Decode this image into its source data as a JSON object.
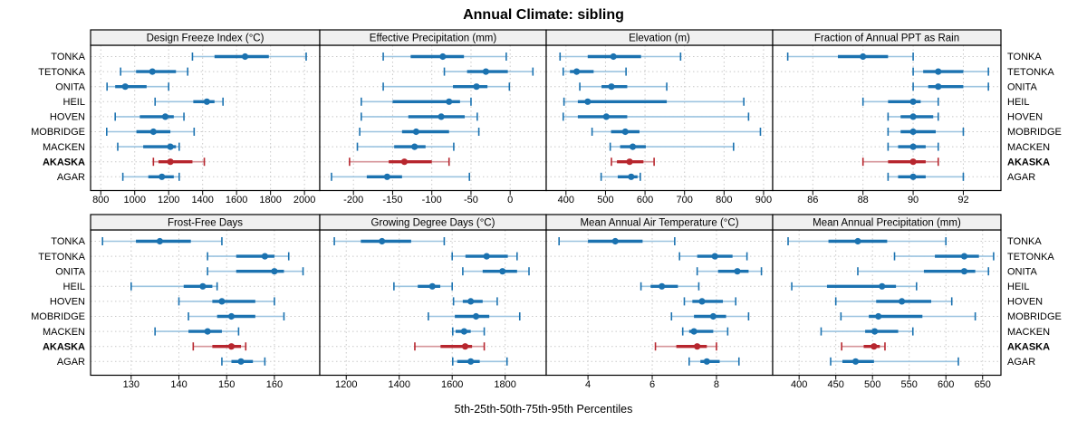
{
  "title": "Annual Climate: sibling",
  "caption": "5th-25th-50th-75th-95th Percentiles",
  "highlight_site": "AKASKA",
  "colors": {
    "blue": "#1b72b0",
    "blue_light": "#9cc4e0",
    "red": "#b7262e",
    "red_light": "#d6959a",
    "grid": "#c9c9c9",
    "strip_bg": "#f0f0f0",
    "border": "#000000",
    "panel_bg": "#ffffff"
  },
  "chart_data": {
    "type": "dotplot-intervals",
    "percentiles": [
      5,
      25,
      50,
      75,
      95
    ],
    "legend_note": "thin line = 5th-95th, thick line = 25th-75th, dot = 50th percentile",
    "layout": {
      "rows": 2,
      "cols": 4,
      "grid": "dotted",
      "row_labels_left_and_right": true
    },
    "rows": [
      "TONKA",
      "TETONKA",
      "ONITA",
      "HEIL",
      "HOVEN",
      "MOBRIDGE",
      "MACKEN",
      "AKASKA",
      "AGAR"
    ],
    "panels": [
      {
        "title": "Design Freeze Index (°C)",
        "xlim": [
          740,
          2090
        ],
        "ticks": [
          800,
          1000,
          1200,
          1400,
          1600,
          1800,
          2000
        ],
        "values": {
          "TONKA": [
            1340,
            1470,
            1650,
            1790,
            2010
          ],
          "TETONKA": [
            917,
            1008,
            1104,
            1243,
            1312
          ],
          "ONITA": [
            837,
            885,
            944,
            1070,
            1200
          ],
          "HEIL": [
            1120,
            1345,
            1425,
            1470,
            1520
          ],
          "HOVEN": [
            885,
            1030,
            1180,
            1230,
            1290
          ],
          "MOBRIDGE": [
            835,
            1010,
            1110,
            1210,
            1350
          ],
          "MACKEN": [
            900,
            1050,
            1210,
            1243,
            1262
          ],
          "AKASKA": [
            1110,
            1140,
            1210,
            1340,
            1410
          ],
          "AGAR": [
            930,
            1080,
            1160,
            1230,
            1262
          ]
        }
      },
      {
        "title": "Effective Precipitation (mm)",
        "xlim": [
          -243,
          46
        ],
        "ticks": [
          -200,
          -150,
          -100,
          -50,
          0
        ],
        "values": {
          "TONKA": [
            -162,
            -127,
            -86,
            -59,
            -5
          ],
          "TETONKA": [
            -84,
            -55,
            -31,
            -3,
            29
          ],
          "ONITA": [
            -162,
            -73,
            -43,
            -29,
            -1
          ],
          "HEIL": [
            -190,
            -150,
            -78,
            -64,
            -50
          ],
          "HOVEN": [
            -190,
            -130,
            -88,
            -58,
            -42
          ],
          "MOBRIDGE": [
            -192,
            -138,
            -120,
            -78,
            -40
          ],
          "MACKEN": [
            -195,
            -148,
            -122,
            -108,
            -72
          ],
          "AKASKA": [
            -205,
            -155,
            -135,
            -100,
            -78
          ],
          "AGAR": [
            -228,
            -183,
            -157,
            -138,
            -52
          ]
        }
      },
      {
        "title": "Elevation (m)",
        "xlim": [
          350,
          923
        ],
        "ticks": [
          400,
          500,
          600,
          700,
          800,
          900
        ],
        "values": {
          "TONKA": [
            385,
            455,
            520,
            590,
            690
          ],
          "TETONKA": [
            393,
            410,
            427,
            470,
            552
          ],
          "ONITA": [
            435,
            490,
            515,
            555,
            655
          ],
          "HEIL": [
            395,
            430,
            455,
            655,
            850
          ],
          "HOVEN": [
            393,
            430,
            502,
            555,
            862
          ],
          "MOBRIDGE": [
            466,
            514,
            550,
            586,
            892
          ],
          "MACKEN": [
            512,
            537,
            569,
            602,
            824
          ],
          "AKASKA": [
            515,
            529,
            561,
            596,
            623
          ],
          "AGAR": [
            489,
            531,
            565,
            581,
            588
          ]
        }
      },
      {
        "title": "Fraction of Annual PPT as Rain",
        "xlim": [
          84.4,
          93.5
        ],
        "ticks": [
          86,
          88,
          90,
          92
        ],
        "values": {
          "TONKA": [
            85,
            87,
            88,
            89,
            90
          ],
          "TETONKA": [
            90,
            90.4,
            91,
            92,
            93
          ],
          "ONITA": [
            90,
            90.6,
            91,
            92,
            93
          ],
          "HEIL": [
            88,
            89,
            90,
            90.3,
            91
          ],
          "HOVEN": [
            89,
            89.5,
            90,
            90.8,
            91
          ],
          "MOBRIDGE": [
            89,
            89.5,
            90,
            90.9,
            92
          ],
          "MACKEN": [
            89,
            89.4,
            90,
            90.5,
            91
          ],
          "AKASKA": [
            88,
            89,
            90,
            90.5,
            91
          ],
          "AGAR": [
            89,
            89.4,
            90,
            90.5,
            92
          ]
        }
      },
      {
        "title": "Frost-Free Days",
        "xlim": [
          121.5,
          169.5
        ],
        "ticks": [
          130,
          140,
          150,
          160
        ],
        "values": {
          "TONKA": [
            124,
            131,
            136,
            142.5,
            149
          ],
          "TETONKA": [
            146,
            152,
            158,
            160,
            163
          ],
          "ONITA": [
            146,
            152,
            160,
            162,
            166
          ],
          "HEIL": [
            130,
            141,
            145,
            147,
            148
          ],
          "HOVEN": [
            140,
            147,
            149,
            156,
            160
          ],
          "MOBRIDGE": [
            142,
            148,
            151,
            156,
            162
          ],
          "MACKEN": [
            135,
            142,
            146,
            149,
            152.5
          ],
          "AKASKA": [
            143,
            147,
            151,
            153,
            154
          ],
          "AGAR": [
            149,
            151,
            153,
            155.5,
            158
          ]
        }
      },
      {
        "title": "Growing Degree Days (°C)",
        "xlim": [
          1100,
          1955
        ],
        "ticks": [
          1200,
          1400,
          1600,
          1800
        ],
        "values": {
          "TONKA": [
            1155,
            1255,
            1335,
            1445,
            1570
          ],
          "TETONKA": [
            1600,
            1650,
            1730,
            1810,
            1845
          ],
          "ONITA": [
            1640,
            1715,
            1790,
            1845,
            1890
          ],
          "HEIL": [
            1380,
            1470,
            1525,
            1555,
            1600
          ],
          "HOVEN": [
            1605,
            1640,
            1670,
            1715,
            1770
          ],
          "MOBRIDGE": [
            1510,
            1610,
            1690,
            1740,
            1855
          ],
          "MACKEN": [
            1602,
            1613,
            1645,
            1670,
            1721
          ],
          "AKASKA": [
            1459,
            1556,
            1649,
            1675,
            1721
          ],
          "AGAR": [
            1602,
            1619,
            1670,
            1704,
            1807
          ]
        }
      },
      {
        "title": "Mean Annual Air Temperature (°C)",
        "xlim": [
          2.7,
          9.75
        ],
        "ticks": [
          4,
          6,
          8
        ],
        "values": {
          "TONKA": [
            3.1,
            4.0,
            4.85,
            5.7,
            6.7
          ],
          "TETONKA": [
            6.85,
            7.4,
            7.95,
            8.5,
            8.95
          ],
          "ONITA": [
            7.4,
            8.05,
            8.65,
            9.0,
            9.4
          ],
          "HEIL": [
            5.65,
            5.95,
            6.3,
            6.8,
            7.45
          ],
          "HOVEN": [
            7.0,
            7.25,
            7.55,
            8.2,
            8.6
          ],
          "MOBRIDGE": [
            6.6,
            7.3,
            7.9,
            8.3,
            9.0
          ],
          "MACKEN": [
            6.95,
            7.15,
            7.3,
            7.9,
            8.35
          ],
          "AKASKA": [
            6.1,
            6.75,
            7.4,
            7.7,
            8.0
          ],
          "AGAR": [
            7.15,
            7.5,
            7.7,
            8.1,
            8.7
          ]
        }
      },
      {
        "title": "Mean Annual Precipitation (mm)",
        "xlim": [
          364,
          675
        ],
        "ticks": [
          400,
          450,
          500,
          550,
          600,
          650
        ],
        "values": {
          "TONKA": [
            385,
            440,
            480,
            520,
            600
          ],
          "TETONKA": [
            530,
            585,
            625,
            645,
            665
          ],
          "ONITA": [
            480,
            570,
            625,
            640,
            658
          ],
          "HEIL": [
            390,
            438,
            513,
            532,
            560
          ],
          "HOVEN": [
            450,
            505,
            540,
            580,
            608
          ],
          "MOBRIDGE": [
            457,
            495,
            508,
            568,
            640
          ],
          "MACKEN": [
            430,
            490,
            503,
            535,
            555
          ],
          "AKASKA": [
            458,
            488,
            502,
            510,
            517
          ],
          "AGAR": [
            443,
            459,
            477,
            502,
            617
          ]
        }
      }
    ]
  }
}
